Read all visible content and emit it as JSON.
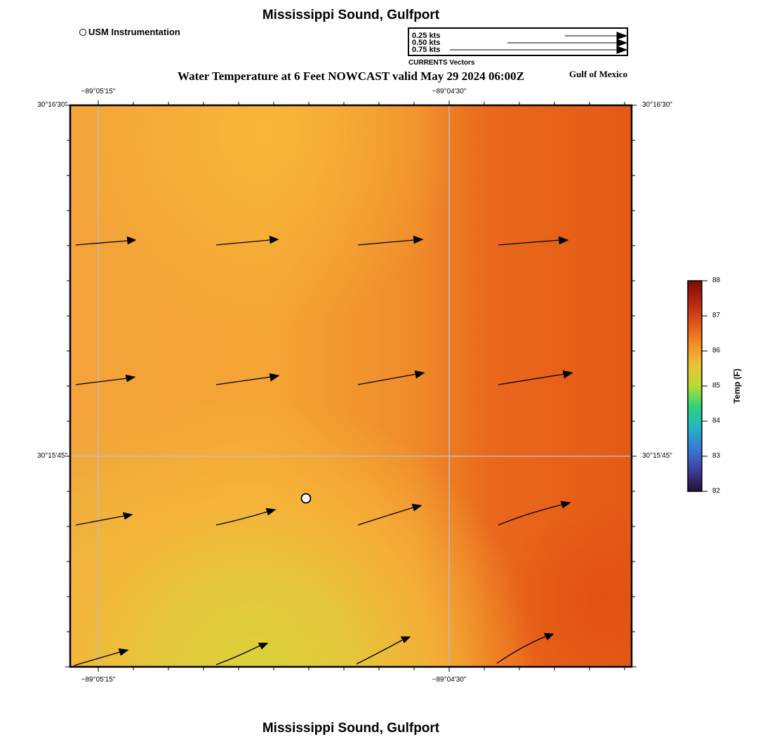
{
  "header": {
    "title": "Mississippi Sound, Gulfport",
    "subtitle": "Water Temperature at 6 Feet NOWCAST valid May 29 2024 06:00Z",
    "region": "Gulf of Mexico"
  },
  "footer": {
    "title": "Mississippi Sound, Gulfport"
  },
  "legend": {
    "instrumentation_label": "USM Instrumentation",
    "vector_box_title": "CURRENTS Vectors",
    "vector_speeds": [
      "0.25 kts",
      "0.50 kts",
      "0.75 kts"
    ]
  },
  "axes": {
    "lon_top": [
      "−89°05'15\"",
      "−89°04'30\""
    ],
    "lon_bottom": [
      "−89°05'15\"",
      "−89°04'30\""
    ],
    "lat_left": [
      "30°16'30\"",
      "30°15'45\""
    ],
    "lat_right": [
      "30°16'30\"",
      "30°15'45\""
    ]
  },
  "colorbar": {
    "label": "Temp (F)",
    "ticks": [
      "88",
      "87",
      "86",
      "85",
      "84",
      "83",
      "82"
    ]
  },
  "colors": {
    "warm_orange": "#e85f18",
    "orange": "#f3a236",
    "yellow_orange": "#f8b838",
    "yellow_green": "#dcd03a",
    "grid": "#bbbbbb"
  }
}
